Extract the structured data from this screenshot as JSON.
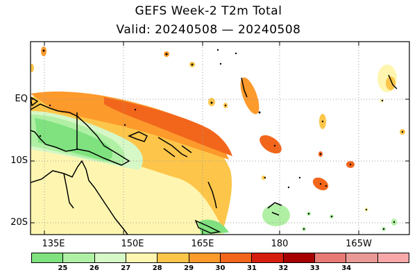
{
  "title": "GEFS Week-2 T2m Total",
  "subtitle": "Valid: 20240508 — 20240508",
  "lat_labels": [
    "EQ",
    "10S",
    "20S"
  ],
  "lon_labels": [
    "135E",
    "150E",
    "165E",
    "180",
    "165W"
  ],
  "colorbar": {
    "colors": [
      "#7fe27f",
      "#b0f0a4",
      "#d6f7c6",
      "#fef6b0",
      "#fdc64a",
      "#fd9a2c",
      "#f2661c",
      "#d61e0e",
      "#a60000",
      "#e87a76",
      "#e99a96",
      "#f8a8a8"
    ],
    "labels": [
      "25",
      "26",
      "27",
      "28",
      "29",
      "30",
      "31",
      "32",
      "33",
      "34"
    ]
  },
  "colors": {
    "coast": "#000000",
    "grid": "#999999"
  }
}
